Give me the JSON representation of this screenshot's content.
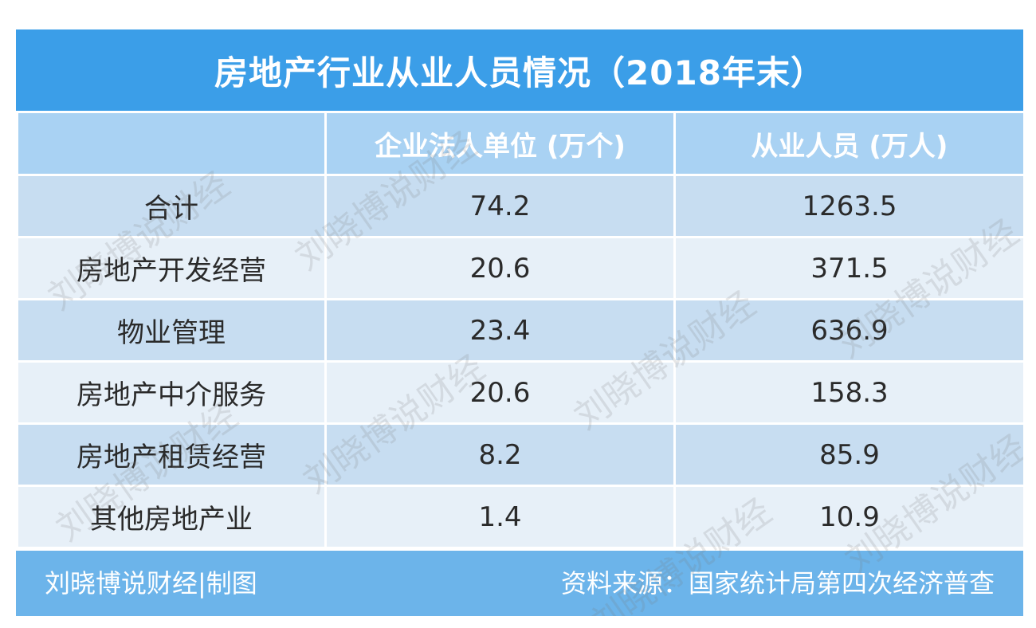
{
  "title": "房地产行业从业人员情况（2018年末）",
  "chart_data": {
    "type": "table",
    "title": "房地产行业从业人员情况（2018年末）",
    "columns": [
      "",
      "企业法人单位 (万个)",
      "从业人员 (万人)"
    ],
    "rows": [
      {
        "category": "合计",
        "units": "74.2",
        "employees": "1263.5"
      },
      {
        "category": "房地产开发经营",
        "units": "20.6",
        "employees": "371.5"
      },
      {
        "category": "物业管理",
        "units": "23.4",
        "employees": "636.9"
      },
      {
        "category": "房地产中介服务",
        "units": "20.6",
        "employees": "158.3"
      },
      {
        "category": "房地产租赁经营",
        "units": "8.2",
        "employees": "85.9"
      },
      {
        "category": "其他房地产业",
        "units": "1.4",
        "employees": "10.9"
      }
    ]
  },
  "footer": {
    "credit": "刘晓博说财经|制图",
    "source": "资料来源：国家统计局第四次经济普查"
  },
  "watermark": "刘晓博说财经",
  "colors": {
    "title_bg": "#3b9ee8",
    "header_bg": "#a9d2f3",
    "row_dark": "#c7ddf1",
    "row_light": "#e7f0f8",
    "footer_bg": "#6cb4ea"
  }
}
